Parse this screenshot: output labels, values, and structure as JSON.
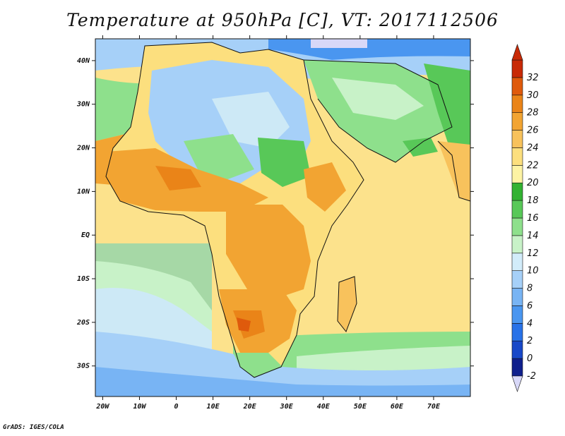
{
  "title": "Temperature at 950hPa [C], VT: 2017112506",
  "credit": "GrADS: IGES/COLA",
  "map": {
    "lon_range": [
      -22,
      80
    ],
    "lat_range": [
      -37,
      45
    ],
    "lat_ticks": [
      {
        "value": 40,
        "label": "40N"
      },
      {
        "value": 30,
        "label": "30N"
      },
      {
        "value": 20,
        "label": "20N"
      },
      {
        "value": 10,
        "label": "10N"
      },
      {
        "value": 0,
        "label": "EQ"
      },
      {
        "value": -10,
        "label": "10S"
      },
      {
        "value": -20,
        "label": "20S"
      },
      {
        "value": -30,
        "label": "30S"
      }
    ],
    "lon_ticks": [
      {
        "value": -20,
        "label": "20W"
      },
      {
        "value": -10,
        "label": "10W"
      },
      {
        "value": 0,
        "label": "0"
      },
      {
        "value": 10,
        "label": "10E"
      },
      {
        "value": 20,
        "label": "20E"
      },
      {
        "value": 30,
        "label": "30E"
      },
      {
        "value": 40,
        "label": "40E"
      },
      {
        "value": 50,
        "label": "50E"
      },
      {
        "value": 60,
        "label": "60E"
      },
      {
        "value": 70,
        "label": "70E"
      }
    ]
  },
  "colorbar": {
    "levels": [
      "-2",
      "0",
      "2",
      "4",
      "6",
      "8",
      "10",
      "12",
      "14",
      "16",
      "18",
      "20",
      "22",
      "24",
      "26",
      "28",
      "30",
      "32"
    ],
    "colors": [
      "#0f1f8c",
      "#1848c8",
      "#2872e8",
      "#4a96f0",
      "#78b4f4",
      "#a6d0f8",
      "#d2ecfa",
      "#c8f2c8",
      "#8ee08c",
      "#58c858",
      "#32b232",
      "#fdf3a4",
      "#fcdf7e",
      "#f8c25c",
      "#f2a432",
      "#ea8418",
      "#df5a0c",
      "#c82a06"
    ],
    "below_color": "#d8d8f8",
    "above_color": "#c82a06"
  }
}
